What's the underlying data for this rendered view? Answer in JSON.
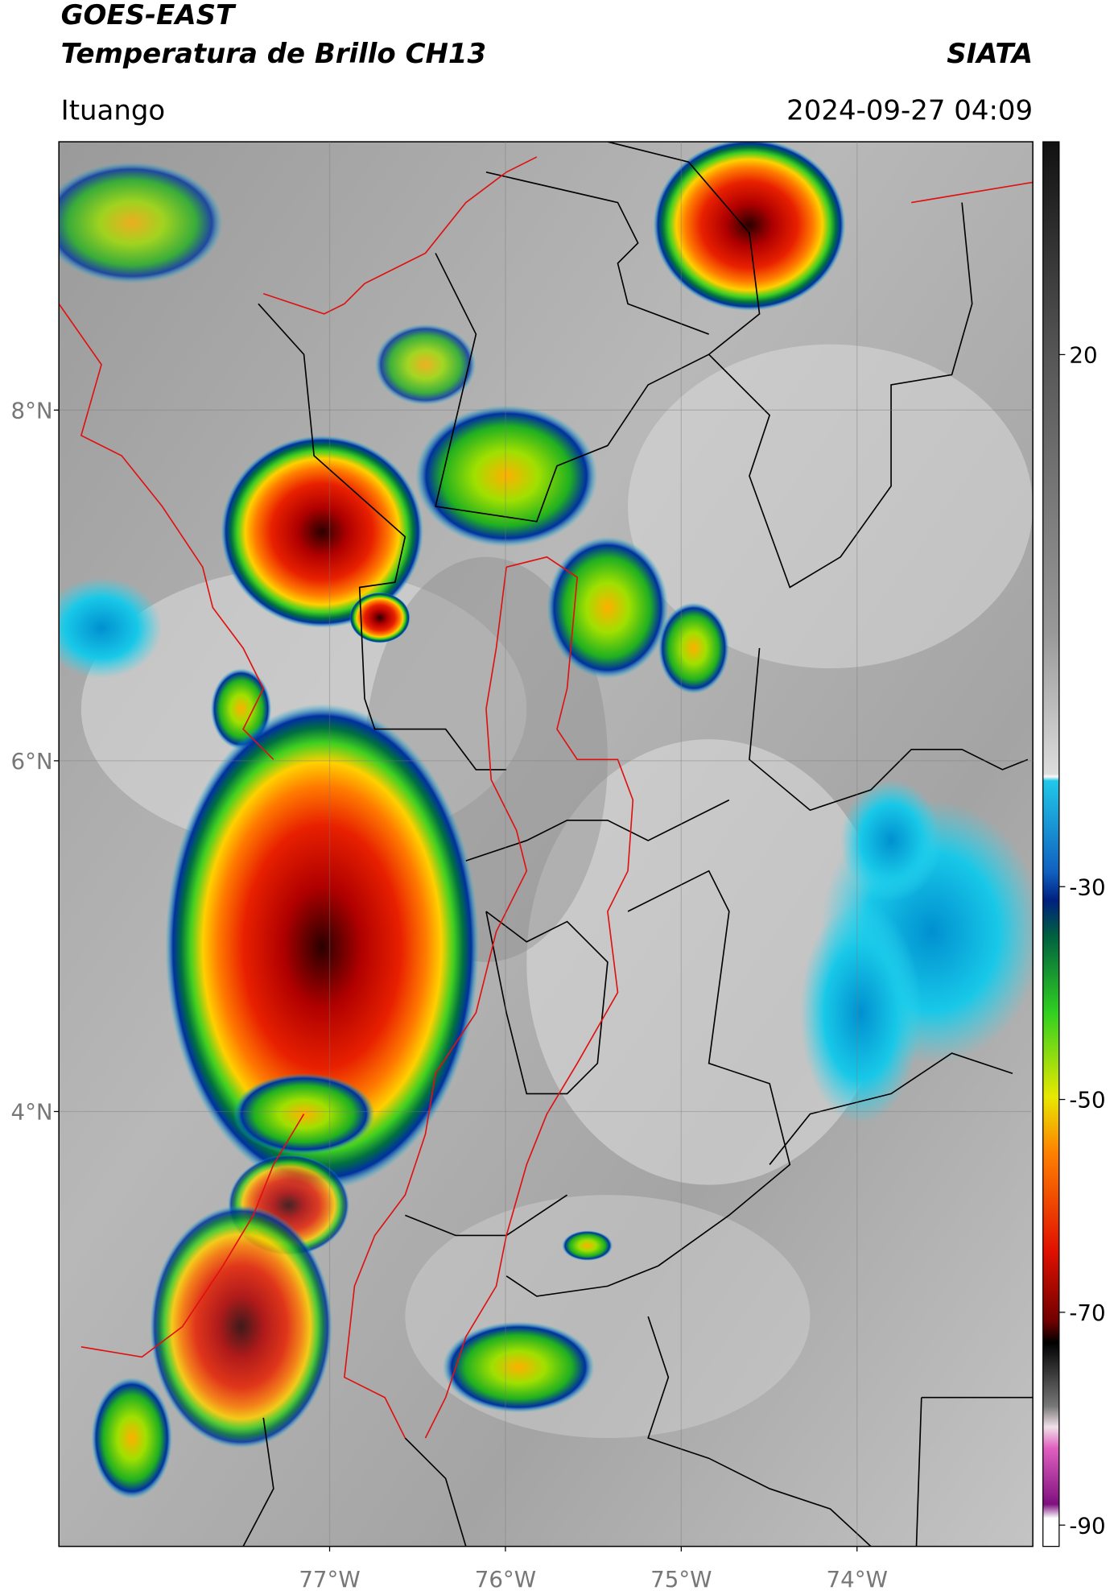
{
  "header": {
    "satellite": "GOES-EAST",
    "product": "Temperatura de Brillo CH13",
    "source": "SIATA",
    "location": "Ituango",
    "datetime": "2024-09-27 04:09"
  },
  "map": {
    "lonlim": [
      -78.54,
      -73.0
    ],
    "latlim": [
      1.52,
      9.53
    ],
    "lonticks": [
      {
        "value": -77,
        "label": "77°W"
      },
      {
        "value": -76,
        "label": "76°W"
      },
      {
        "value": -75,
        "label": "75°W"
      },
      {
        "value": -74,
        "label": "74°W"
      }
    ],
    "latticks": [
      {
        "value": 8,
        "label": "8°N"
      },
      {
        "value": 6,
        "label": "6°N"
      },
      {
        "value": 4,
        "label": "4°N"
      }
    ],
    "grid": true
  },
  "colorbar": {
    "lim": [
      -92,
      40
    ],
    "ticks": [
      20,
      -30,
      -50,
      -70,
      -90
    ]
  }
}
